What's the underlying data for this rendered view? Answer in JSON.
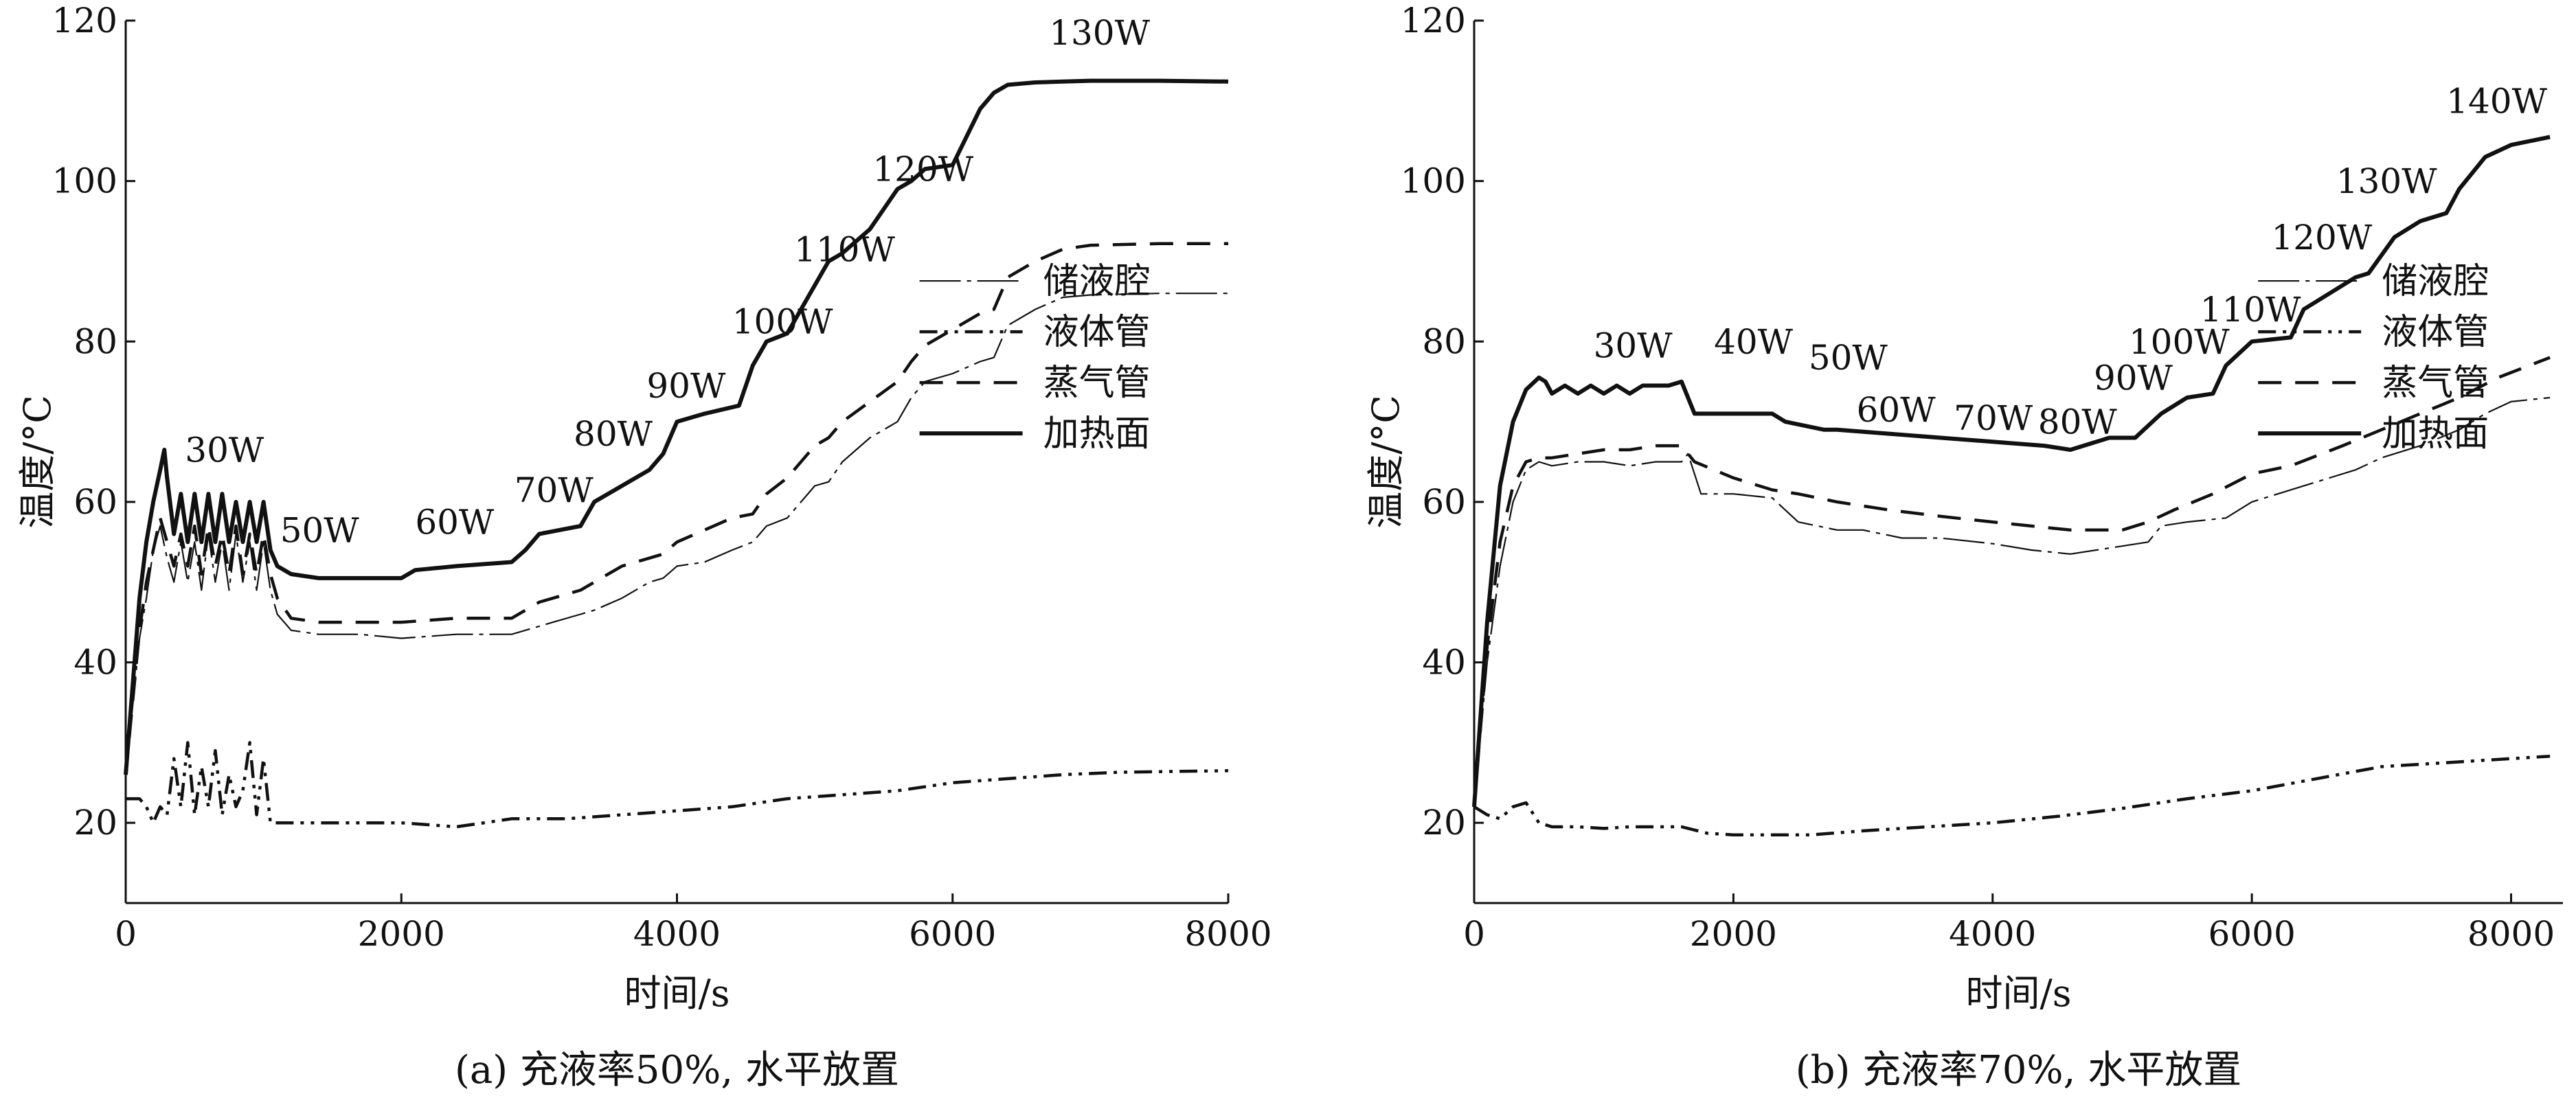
{
  "chart_data": [
    {
      "type": "line",
      "caption": "(a) 充液率50%, 水平放置",
      "xlabel": "时间/s",
      "ylabel": "温度/°C",
      "xlim": [
        0,
        8000
      ],
      "ylim": [
        10,
        120
      ],
      "xticks": [
        0,
        2000,
        4000,
        6000,
        8000
      ],
      "yticks": [
        20,
        40,
        60,
        80,
        100,
        120
      ],
      "legend_position": "right-middle",
      "series": [
        {
          "name": "储液腔",
          "style": "dash-dot-thin",
          "x": [
            0,
            100,
            150,
            200,
            250,
            300,
            350,
            400,
            450,
            500,
            550,
            600,
            650,
            700,
            750,
            800,
            850,
            900,
            950,
            1000,
            1050,
            1100,
            1200,
            1400,
            1700,
            2000,
            2400,
            2800,
            3100,
            3300,
            3400,
            3600,
            3800,
            3900,
            4000,
            4200,
            4400,
            4550,
            4650,
            4800,
            5000,
            5100,
            5200,
            5400,
            5600,
            5700,
            5800,
            6000,
            6200,
            6300,
            6400,
            6600,
            6800,
            7000,
            7500,
            8000
          ],
          "y": [
            26,
            43,
            48,
            54,
            57,
            53,
            50,
            55,
            50,
            55,
            49,
            56,
            50,
            55,
            49,
            56,
            50,
            55,
            49,
            55,
            49,
            46,
            44,
            43.5,
            43.5,
            43,
            43.5,
            43.5,
            45,
            46,
            46.5,
            48,
            50,
            50.5,
            52,
            52.5,
            54,
            55,
            57,
            58,
            62,
            62.5,
            65,
            68,
            70,
            73,
            75,
            76,
            77.5,
            78,
            82,
            84,
            85.5,
            85.8,
            86,
            86
          ]
        },
        {
          "name": "液体管",
          "style": "dash-dot-dot",
          "x": [
            0,
            100,
            150,
            200,
            250,
            300,
            350,
            400,
            450,
            500,
            550,
            600,
            650,
            700,
            750,
            800,
            850,
            900,
            950,
            1000,
            1050,
            1200,
            1600,
            2000,
            2400,
            2800,
            3200,
            3600,
            4000,
            4400,
            4800,
            5200,
            5600,
            6000,
            6400,
            6800,
            7200,
            7600,
            8000
          ],
          "y": [
            23,
            23,
            22,
            20,
            22,
            21,
            28,
            22,
            30,
            21,
            27,
            22,
            29,
            21,
            26,
            22,
            24,
            30,
            21,
            28,
            20,
            20,
            20,
            20,
            19.5,
            20.5,
            20.5,
            21,
            21.5,
            22,
            23,
            23.5,
            24,
            25,
            25.5,
            26,
            26.3,
            26.4,
            26.5
          ]
        },
        {
          "name": "蒸气管",
          "style": "dashed",
          "x": [
            0,
            100,
            150,
            200,
            250,
            300,
            350,
            400,
            450,
            500,
            550,
            600,
            650,
            700,
            750,
            800,
            850,
            900,
            950,
            1000,
            1050,
            1100,
            1200,
            1400,
            1700,
            2000,
            2400,
            2800,
            3000,
            3300,
            3400,
            3600,
            3800,
            3900,
            4000,
            4200,
            4400,
            4550,
            4650,
            4800,
            5000,
            5100,
            5200,
            5400,
            5600,
            5700,
            5800,
            6000,
            6200,
            6300,
            6400,
            6600,
            6800,
            7000,
            7500,
            8000
          ],
          "y": [
            26,
            44,
            50,
            54,
            58,
            55,
            52,
            56,
            52,
            57,
            51,
            57,
            52,
            56,
            51,
            57,
            51,
            56,
            51,
            56,
            51,
            48,
            45.5,
            45,
            45,
            45,
            45.5,
            45.5,
            47.5,
            49,
            50,
            52,
            53,
            53.5,
            55,
            56.5,
            58,
            58.5,
            61,
            63,
            67,
            68,
            70,
            72.5,
            75,
            77.5,
            79.5,
            81.5,
            83.5,
            84,
            88,
            90,
            91.5,
            92,
            92.2,
            92.2
          ]
        },
        {
          "name": "加热面",
          "style": "solid-thick",
          "x": [
            0,
            100,
            150,
            200,
            250,
            280,
            300,
            350,
            400,
            450,
            500,
            550,
            600,
            650,
            700,
            750,
            800,
            850,
            900,
            950,
            1000,
            1050,
            1100,
            1200,
            1400,
            1700,
            2000,
            2100,
            2400,
            2800,
            2900,
            3000,
            3300,
            3400,
            3600,
            3800,
            3900,
            4000,
            4200,
            4450,
            4550,
            4650,
            4800,
            5000,
            5100,
            5200,
            5400,
            5600,
            5700,
            5800,
            6000,
            6200,
            6300,
            6400,
            6600,
            6800,
            7000,
            7500,
            8000
          ],
          "y": [
            26,
            48,
            55,
            60,
            64,
            66.5,
            63,
            56,
            61,
            55,
            61,
            55,
            61,
            55,
            61,
            55,
            60,
            55,
            60,
            55,
            60,
            54,
            52,
            51,
            50.5,
            50.5,
            50.5,
            51.5,
            52,
            52.5,
            54,
            56,
            57,
            60,
            62,
            64,
            66,
            70,
            71,
            72,
            77,
            80,
            81,
            87,
            90,
            91,
            94,
            99,
            100,
            101.5,
            102,
            109,
            111,
            112,
            112.3,
            112.4,
            112.5,
            112.5,
            112.4
          ]
        }
      ],
      "annotations": [
        {
          "text": "30W",
          "x": 430,
          "y": 65
        },
        {
          "text": "50W",
          "x": 1120,
          "y": 55
        },
        {
          "text": "60W",
          "x": 2100,
          "y": 56
        },
        {
          "text": "70W",
          "x": 2820,
          "y": 60
        },
        {
          "text": "80W",
          "x": 3250,
          "y": 67
        },
        {
          "text": "90W",
          "x": 3780,
          "y": 73
        },
        {
          "text": "100W",
          "x": 4400,
          "y": 81
        },
        {
          "text": "110W",
          "x": 4850,
          "y": 90
        },
        {
          "text": "120W",
          "x": 5420,
          "y": 100
        },
        {
          "text": "130W",
          "x": 6700,
          "y": 117
        }
      ]
    },
    {
      "type": "line",
      "caption": "(b) 充液率70%, 水平放置",
      "xlabel": "时间/s",
      "ylabel": "温度/°C",
      "xlim": [
        0,
        8400
      ],
      "ylim": [
        10,
        120
      ],
      "xticks": [
        0,
        2000,
        4000,
        6000,
        8000
      ],
      "yticks": [
        20,
        40,
        60,
        80,
        100,
        120
      ],
      "legend_position": "right-middle",
      "series": [
        {
          "name": "储液腔",
          "style": "dash-dot-thin",
          "x": [
            0,
            100,
            200,
            300,
            400,
            500,
            600,
            800,
            1000,
            1200,
            1400,
            1600,
            1650,
            1750,
            2000,
            2300,
            2500,
            2800,
            3000,
            3300,
            3600,
            4000,
            4300,
            4600,
            5000,
            5200,
            5300,
            5500,
            5800,
            6000,
            6200,
            6500,
            6800,
            7000,
            7300,
            7600,
            7800,
            8000,
            8300
          ],
          "y": [
            22,
            40,
            52,
            60,
            64,
            65,
            64.5,
            65,
            65,
            64.5,
            65,
            65,
            66,
            61,
            61,
            60.5,
            57.5,
            56.5,
            56.5,
            55.5,
            55.5,
            54.8,
            54,
            53.5,
            54.5,
            55,
            57,
            57.5,
            58,
            60,
            61,
            62.5,
            64,
            65.5,
            67,
            69,
            71,
            72.5,
            73
          ]
        },
        {
          "name": "液体管",
          "style": "dash-dot-dot",
          "x": [
            0,
            100,
            200,
            300,
            400,
            500,
            600,
            800,
            1000,
            1200,
            1400,
            1600,
            1800,
            2000,
            2300,
            2600,
            3000,
            3500,
            4000,
            4500,
            5000,
            5500,
            6000,
            6500,
            7000,
            7500,
            8000,
            8300
          ],
          "y": [
            22,
            21,
            20.5,
            22,
            22.5,
            20,
            19.5,
            19.5,
            19.3,
            19.5,
            19.5,
            19.5,
            18.7,
            18.5,
            18.5,
            18.5,
            19,
            19.5,
            20,
            20.8,
            21.8,
            23,
            24,
            25.5,
            27,
            27.5,
            28,
            28.3
          ]
        },
        {
          "name": "蒸气管",
          "style": "dashed",
          "x": [
            0,
            100,
            200,
            300,
            400,
            500,
            600,
            800,
            1000,
            1200,
            1400,
            1600,
            1700,
            2000,
            2300,
            2500,
            2800,
            3200,
            3600,
            4000,
            4300,
            4600,
            5000,
            5200,
            5400,
            5700,
            6000,
            6300,
            6700,
            7000,
            7300,
            7600,
            7900,
            8300
          ],
          "y": [
            22,
            42,
            55,
            62,
            65,
            65.5,
            65.5,
            66,
            66.5,
            66.5,
            67,
            67,
            65,
            63,
            61.5,
            61,
            60,
            59,
            58.2,
            57.5,
            57,
            56.5,
            56.5,
            57.5,
            59,
            61,
            63.5,
            64.5,
            67,
            69,
            71,
            73,
            75.5,
            78
          ]
        },
        {
          "name": "加热面",
          "style": "solid-thick",
          "x": [
            0,
            100,
            200,
            300,
            400,
            500,
            550,
            600,
            700,
            800,
            900,
            1000,
            1100,
            1200,
            1300,
            1400,
            1500,
            1600,
            1650,
            1700,
            1800,
            2000,
            2300,
            2400,
            2700,
            2800,
            3200,
            3600,
            4000,
            4400,
            4600,
            4900,
            5100,
            5200,
            5300,
            5500,
            5700,
            5800,
            6000,
            6300,
            6400,
            6800,
            6900,
            7100,
            7300,
            7500,
            7600,
            7800,
            8000,
            8300
          ],
          "y": [
            22,
            45,
            62,
            70,
            74,
            75.5,
            75,
            73.5,
            74.5,
            73.5,
            74.5,
            73.5,
            74.5,
            73.5,
            74.5,
            74.5,
            74.5,
            75,
            73,
            71,
            71,
            71,
            71,
            70,
            69,
            69,
            68.5,
            68,
            67.5,
            67,
            66.5,
            68,
            68,
            69.5,
            71,
            73,
            73.5,
            77,
            80,
            80.5,
            84,
            88,
            88.5,
            93,
            95,
            96,
            99,
            103,
            104.5,
            105.5
          ]
        }
      ],
      "annotations": [
        {
          "text": "30W",
          "x": 920,
          "y": 78
        },
        {
          "text": "40W",
          "x": 1850,
          "y": 78.5
        },
        {
          "text": "50W",
          "x": 2580,
          "y": 76.5
        },
        {
          "text": "60W",
          "x": 2950,
          "y": 70
        },
        {
          "text": "70W",
          "x": 3700,
          "y": 69
        },
        {
          "text": "80W",
          "x": 4350,
          "y": 68.5
        },
        {
          "text": "90W",
          "x": 4780,
          "y": 74
        },
        {
          "text": "100W",
          "x": 5050,
          "y": 78.5
        },
        {
          "text": "110W",
          "x": 5600,
          "y": 82.5
        },
        {
          "text": "120W",
          "x": 6150,
          "y": 91.5
        },
        {
          "text": "130W",
          "x": 6650,
          "y": 98.5
        },
        {
          "text": "140W",
          "x": 7500,
          "y": 108.5
        }
      ]
    }
  ]
}
